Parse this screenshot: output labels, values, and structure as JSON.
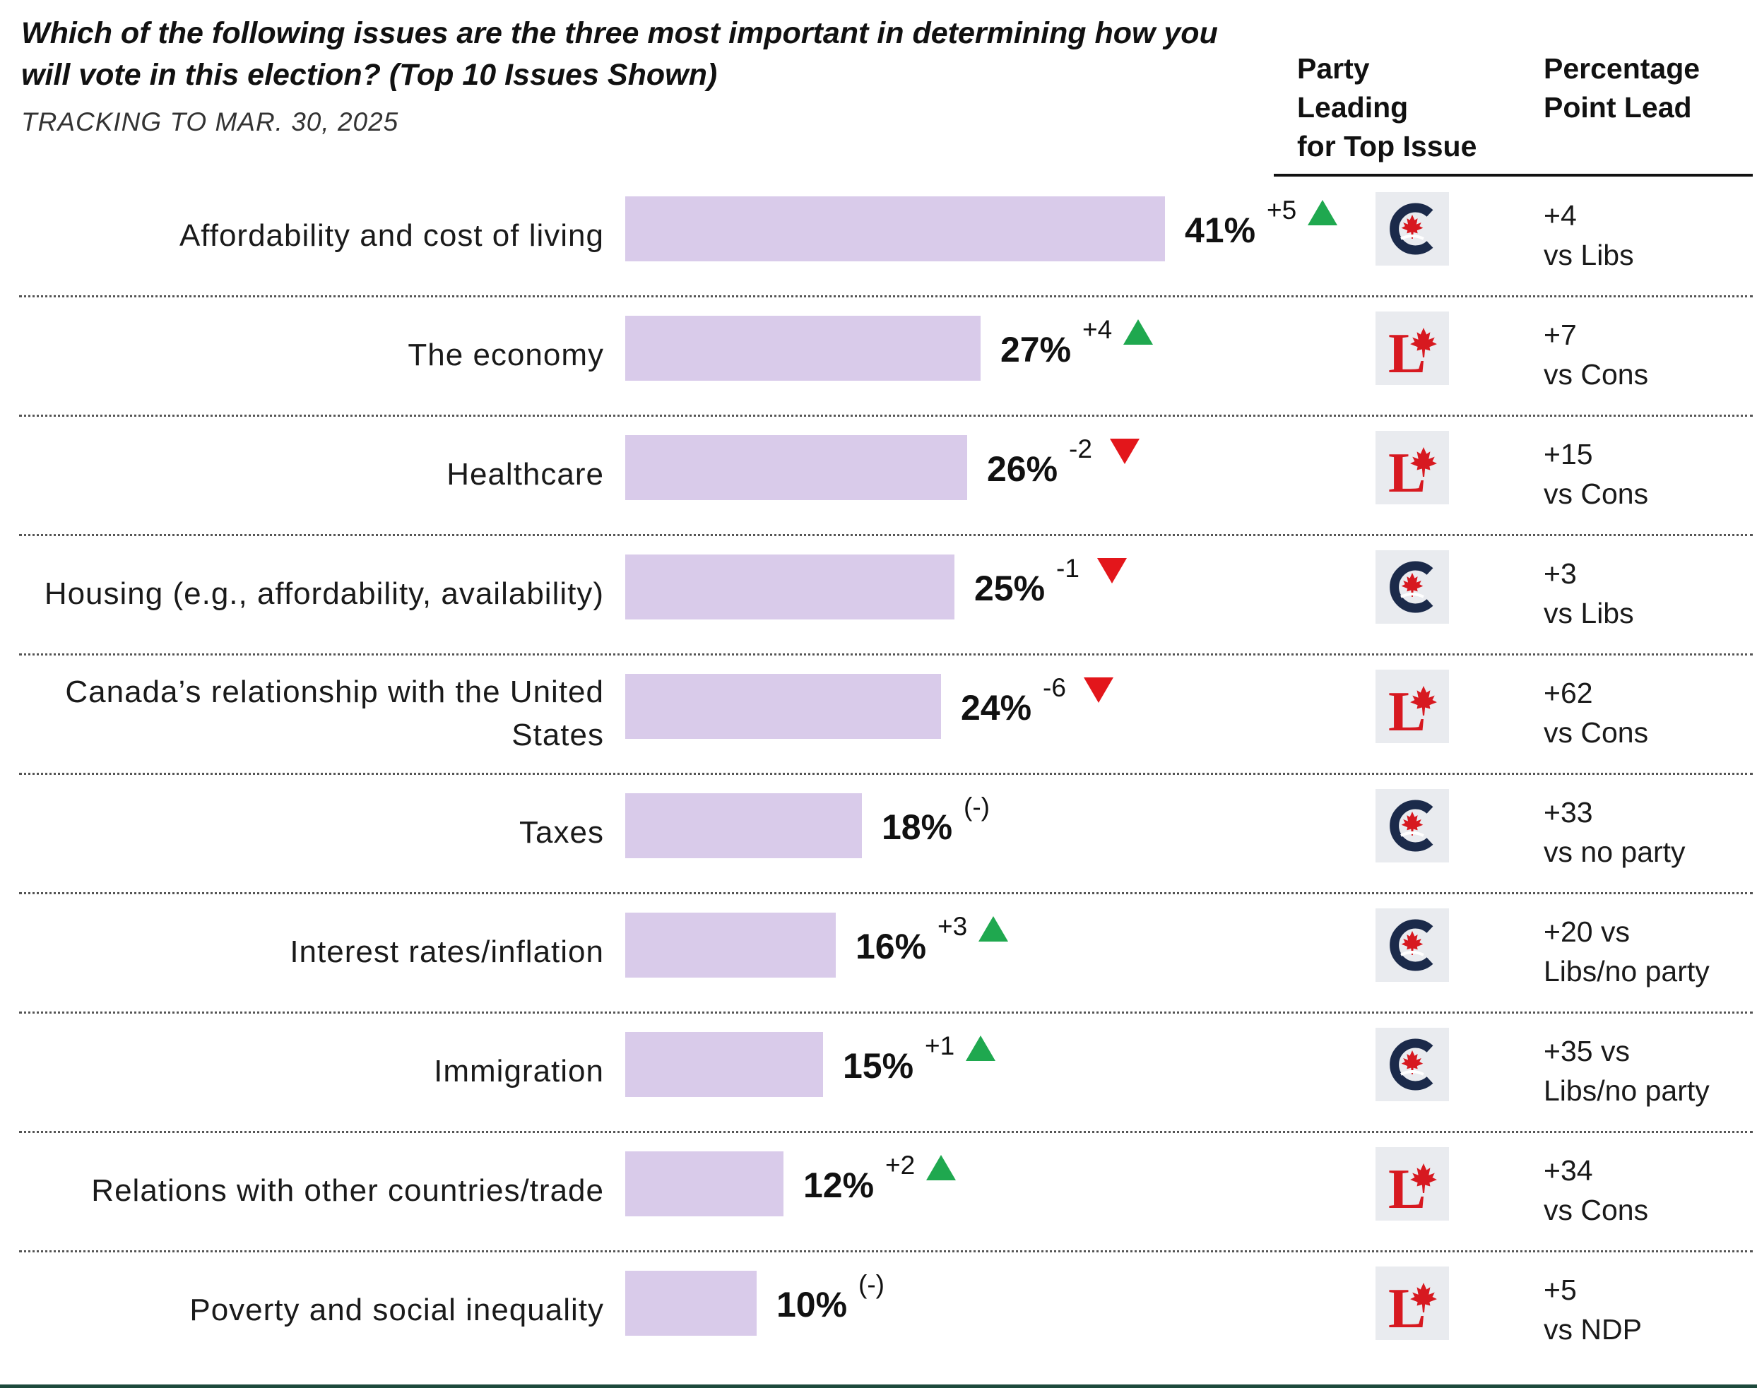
{
  "chart_data": {
    "type": "bar",
    "title": "Which of the following issues are the three most important in determining how you will vote in this election? (Top 10 Issues Shown)",
    "subtitle": "TRACKING TO MAR. 30, 2025",
    "columns": {
      "party": "Party\nLeading\nfor Top Issue",
      "lead": "Percentage\nPoint Lead"
    },
    "xlim": [
      0,
      41
    ],
    "rows": [
      {
        "label": "Affordability and cost of living",
        "value": 41,
        "value_label": "41%",
        "change": "+5",
        "direction": "up",
        "party": "Conservative",
        "lead": "+4\nvs Libs"
      },
      {
        "label": "The economy",
        "value": 27,
        "value_label": "27%",
        "change": "+4",
        "direction": "up",
        "party": "Liberal",
        "lead": "+7\nvs Cons"
      },
      {
        "label": "Healthcare",
        "value": 26,
        "value_label": "26%",
        "change": "-2",
        "direction": "down",
        "party": "Liberal",
        "lead": "+15\nvs Cons"
      },
      {
        "label": "Housing (e.g., affordability, availability)",
        "value": 25,
        "value_label": "25%",
        "change": "-1",
        "direction": "down",
        "party": "Conservative",
        "lead": "+3\nvs Libs"
      },
      {
        "label": "Canada’s relationship with the United States",
        "value": 24,
        "value_label": "24%",
        "change": "-6",
        "direction": "down",
        "party": "Liberal",
        "lead": "+62\nvs Cons"
      },
      {
        "label": "Taxes",
        "value": 18,
        "value_label": "18%",
        "change": "(-)",
        "direction": "none",
        "party": "Conservative",
        "lead": "+33\nvs no party"
      },
      {
        "label": "Interest rates/inflation",
        "value": 16,
        "value_label": "16%",
        "change": "+3",
        "direction": "up",
        "party": "Conservative",
        "lead": "+20 vs\nLibs/no party"
      },
      {
        "label": "Immigration",
        "value": 15,
        "value_label": "15%",
        "change": "+1",
        "direction": "up",
        "party": "Conservative",
        "lead": "+35  vs\nLibs/no party"
      },
      {
        "label": "Relations with other countries/trade",
        "value": 12,
        "value_label": "12%",
        "change": "+2",
        "direction": "up",
        "party": "Liberal",
        "lead": "+34\nvs Cons"
      },
      {
        "label": "Poverty and social inequality",
        "value": 10,
        "value_label": "10%",
        "change": "(-)",
        "direction": "none",
        "party": "Liberal",
        "lead": "+5\nvs NDP"
      }
    ]
  },
  "colors": {
    "bar": "#d9cbea",
    "up": "#1fa84f",
    "down": "#e3161b",
    "conservative_navy": "#1b2a4a",
    "maple_red": "#d71920",
    "logo_bg": "#e9ebef"
  },
  "icons": {
    "Conservative": "conservative-party-logo-icon",
    "Liberal": "liberal-party-logo-icon",
    "up": "triangle-up-icon",
    "down": "triangle-down-icon"
  }
}
